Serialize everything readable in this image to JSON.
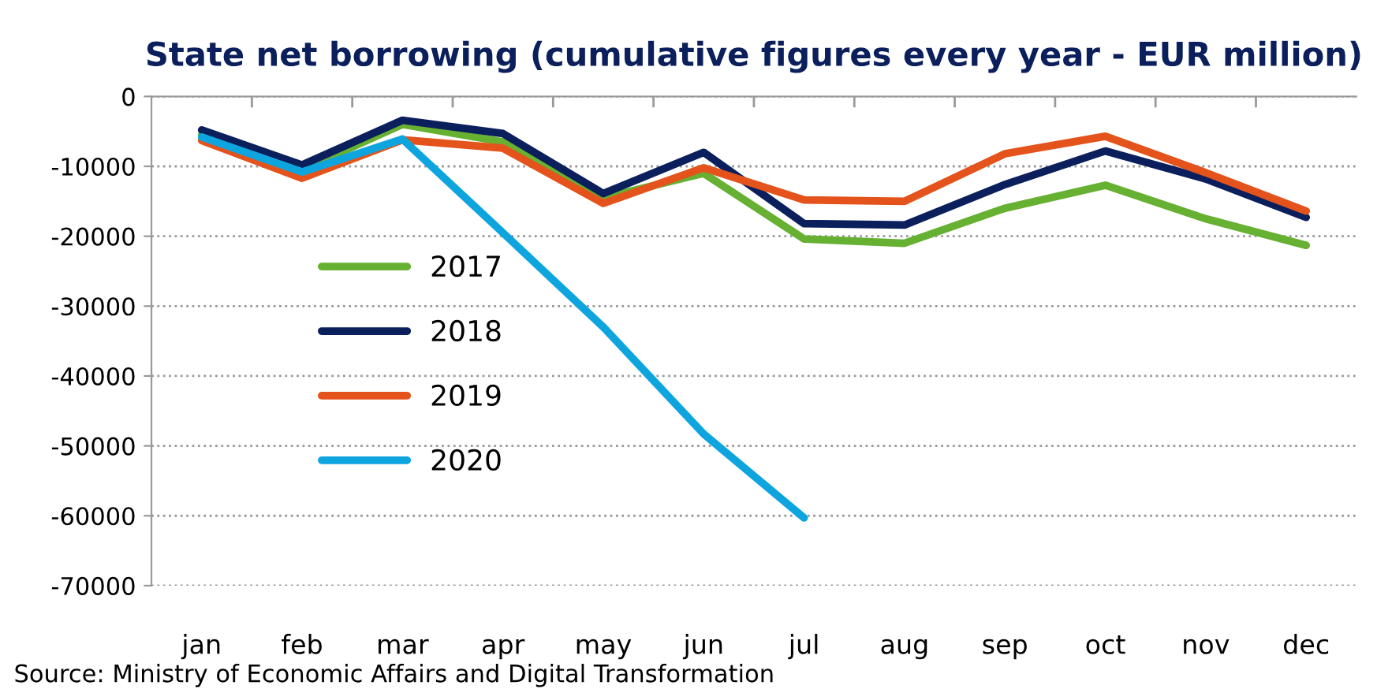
{
  "chart_data": {
    "type": "line",
    "title": "State net borrowing (cumulative figures every year - EUR million)",
    "categories": [
      "jan",
      "feb",
      "mar",
      "apr",
      "may",
      "jun",
      "jul",
      "aug",
      "sep",
      "oct",
      "nov",
      "dec"
    ],
    "series": [
      {
        "name": "2017",
        "color": "#66b032",
        "values": [
          -5500,
          -10500,
          -4000,
          -6500,
          -14500,
          -11000,
          -20400,
          -21000,
          -16000,
          -12700,
          -17500,
          -21300
        ]
      },
      {
        "name": "2018",
        "color": "#0a1f5c",
        "values": [
          -4800,
          -9800,
          -3400,
          -5300,
          -13900,
          -8000,
          -18200,
          -18400,
          -12600,
          -7800,
          -11800,
          -17300
        ]
      },
      {
        "name": "2019",
        "color": "#e4531b",
        "values": [
          -6300,
          -11700,
          -6200,
          -7400,
          -15300,
          -10200,
          -14800,
          -15000,
          -8200,
          -5700,
          -10900,
          -16400
        ]
      },
      {
        "name": "2020",
        "color": "#0ea5df",
        "values": [
          -5800,
          -10800,
          -6100,
          -19500,
          -33000,
          -48300,
          -60300,
          null,
          null,
          null,
          null,
          null
        ]
      }
    ],
    "ylim": [
      -70000,
      0
    ],
    "yticks": [
      -70000,
      -60000,
      -50000,
      -40000,
      -30000,
      -20000,
      -10000,
      0
    ],
    "grid": "y",
    "legend": "left",
    "marker": "none",
    "line_style": "solid",
    "annotations": [
      "Source: Ministry of Economic Affairs and Digital Transformation"
    ]
  }
}
